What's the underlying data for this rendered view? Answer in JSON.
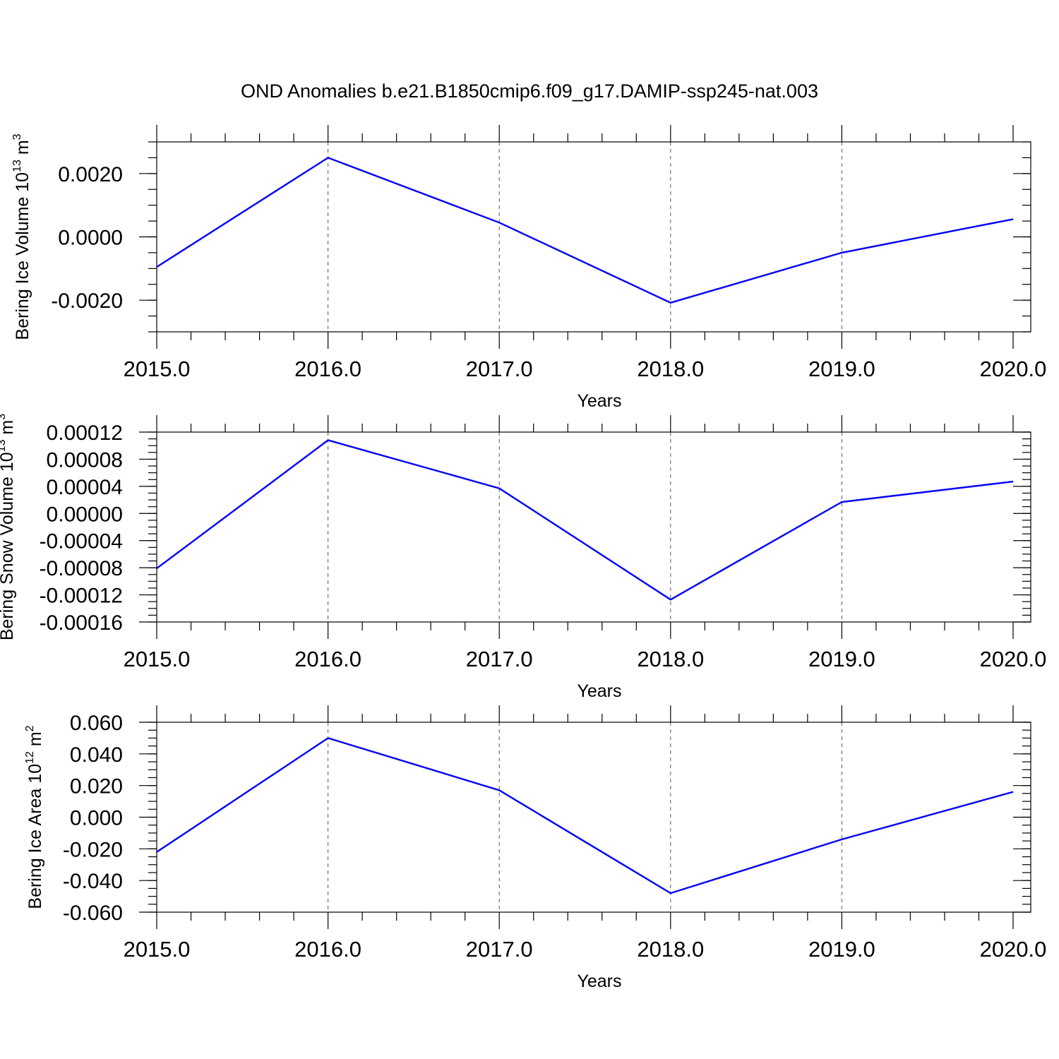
{
  "title": "OND Anomalies b.e21.B1850cmip6.f09_g17.DAMIP-ssp245-nat.003",
  "colors": {
    "series": "#0000ff",
    "axes": "#000000",
    "grid": "#555555"
  },
  "chart_data": [
    {
      "type": "line",
      "xlabel": "Years",
      "ylabel": {
        "text": "Bering Ice Volume 10",
        "sup": "13",
        "tail": " m",
        "unit_sup": "3"
      },
      "x": [
        2015,
        2016,
        2017,
        2018,
        2019,
        2020
      ],
      "x_tick_labels": [
        "2015.0",
        "2016.0",
        "2017.0",
        "2018.0",
        "2019.0",
        "2020.0"
      ],
      "xlim": [
        2015,
        2020.1
      ],
      "ylim": [
        -0.003,
        0.003
      ],
      "y_ticks": [
        -0.002,
        0,
        0.002
      ],
      "y_tick_labels": [
        "-0.0020",
        "0.0000",
        "0.0020"
      ],
      "y_minor_step": 0.0005,
      "x_minor_step": 0.2,
      "grid_vertical": "dashed at major x ticks",
      "series": [
        {
          "values": [
            -0.00095,
            0.0025,
            0.00045,
            -0.00208,
            -0.0005,
            0.00056
          ]
        }
      ]
    },
    {
      "type": "line",
      "xlabel": "Years",
      "ylabel": {
        "text": "Bering Snow Volume 10",
        "sup": "13",
        "tail": " m",
        "unit_sup": "3"
      },
      "x": [
        2015,
        2016,
        2017,
        2018,
        2019,
        2020
      ],
      "x_tick_labels": [
        "2015.0",
        "2016.0",
        "2017.0",
        "2018.0",
        "2019.0",
        "2020.0"
      ],
      "xlim": [
        2015,
        2020.1
      ],
      "ylim": [
        -0.00016,
        0.00012
      ],
      "y_ticks": [
        -0.00016,
        -0.00012,
        -8e-05,
        -4e-05,
        0,
        4e-05,
        8e-05,
        0.00012
      ],
      "y_tick_labels": [
        "-0.00016",
        "-0.00012",
        "-0.00008",
        "-0.00004",
        "0.00000",
        "0.00004",
        "0.00008",
        "0.00012"
      ],
      "y_minor_step": 1e-05,
      "x_minor_step": 0.2,
      "grid_vertical": "dashed at major x ticks",
      "series": [
        {
          "values": [
            -8.1e-05,
            0.000108,
            3.7e-05,
            -0.000127,
            1.7e-05,
            4.7e-05
          ]
        }
      ]
    },
    {
      "type": "line",
      "xlabel": "Years",
      "ylabel": {
        "text": "Bering Ice Area 10",
        "sup": "12",
        "tail": " m",
        "unit_sup": "2"
      },
      "x": [
        2015,
        2016,
        2017,
        2018,
        2019,
        2020
      ],
      "x_tick_labels": [
        "2015.0",
        "2016.0",
        "2017.0",
        "2018.0",
        "2019.0",
        "2020.0"
      ],
      "xlim": [
        2015,
        2020.1
      ],
      "ylim": [
        -0.06,
        0.06
      ],
      "y_ticks": [
        -0.06,
        -0.04,
        -0.02,
        0,
        0.02,
        0.04,
        0.06
      ],
      "y_tick_labels": [
        "-0.060",
        "-0.040",
        "-0.020",
        "0.000",
        "0.020",
        "0.040",
        "0.060"
      ],
      "y_minor_step": 0.005,
      "x_minor_step": 0.2,
      "grid_vertical": "dashed at major x ticks",
      "series": [
        {
          "values": [
            -0.022,
            0.05,
            0.017,
            -0.048,
            -0.014,
            0.016
          ]
        }
      ]
    }
  ]
}
